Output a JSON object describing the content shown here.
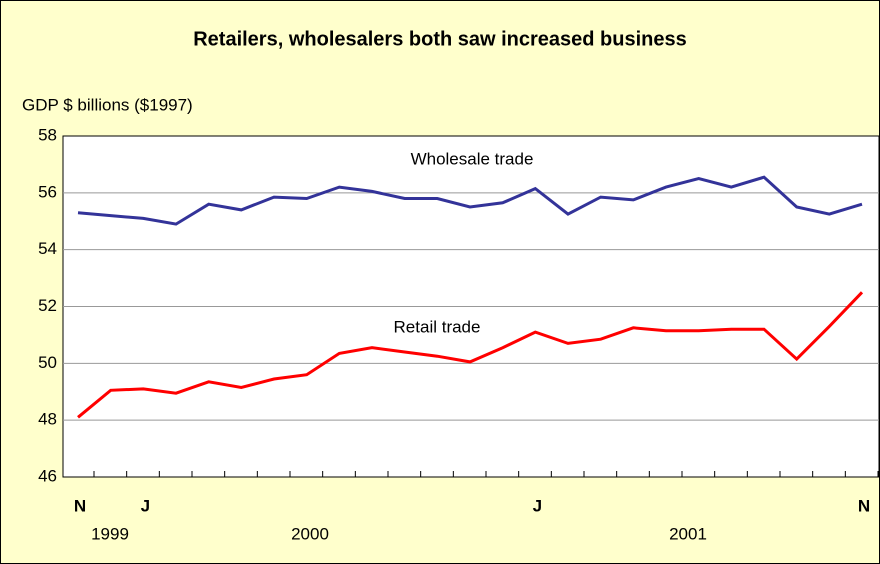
{
  "chart_data": {
    "type": "line",
    "title": "Retailers, wholesalers both saw increased business",
    "y_label": "GDP $ billions ($1997)",
    "categories": [
      "N",
      null,
      "J",
      null,
      null,
      null,
      null,
      null,
      null,
      null,
      null,
      null,
      null,
      null,
      "J",
      null,
      null,
      null,
      null,
      null,
      null,
      null,
      null,
      null,
      "N"
    ],
    "years": [
      "1999",
      "2000",
      "2001"
    ],
    "series": [
      {
        "name": "Wholesale trade",
        "color": "#333399",
        "values": [
          55.3,
          55.2,
          55.1,
          54.9,
          55.6,
          55.4,
          55.85,
          55.8,
          56.2,
          56.05,
          55.8,
          55.8,
          55.5,
          55.65,
          56.15,
          55.25,
          55.85,
          55.75,
          56.2,
          56.5,
          56.2,
          56.55,
          55.5,
          55.25,
          55.6
        ]
      },
      {
        "name": "Retail trade",
        "color": "#ff0000",
        "values": [
          48.1,
          49.05,
          49.1,
          48.95,
          49.35,
          49.15,
          49.45,
          49.6,
          50.35,
          50.55,
          50.4,
          50.25,
          50.05,
          50.55,
          51.1,
          50.7,
          50.85,
          51.25,
          51.15,
          51.15,
          51.2,
          51.2,
          50.15,
          51.3,
          52.5
        ]
      }
    ],
    "ylim": [
      46,
      58
    ],
    "yticks": [
      46,
      48,
      50,
      52,
      54,
      56,
      58
    ],
    "grid": true
  }
}
